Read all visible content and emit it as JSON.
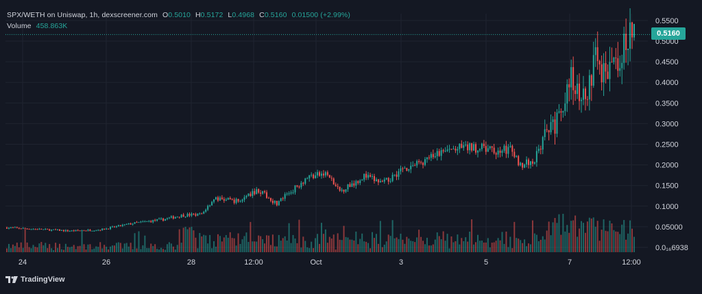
{
  "legend": {
    "title": "SPX/WETH on Uniswap, 1h, dexscreener.com",
    "open_key": "O",
    "open": "0.5010",
    "high_key": "H",
    "high": "0.5172",
    "low_key": "L",
    "low": "0.4968",
    "close_key": "C",
    "close": "0.5160",
    "change": "0.01500 (+2.99%)",
    "volume_label": "Volume",
    "volume": "458.863K"
  },
  "last_price_tag": "0.5160",
  "branding": "TradingView",
  "colors": {
    "background": "#141823",
    "up": "#26a69a",
    "down": "#ef5350",
    "grid": "#1f2430",
    "text": "#d1d4dc"
  },
  "chart_data": {
    "type": "candlestick",
    "pair": "SPX/WETH",
    "interval": "1h",
    "y_axis_ticks": [
      "0.5500",
      "0.5000",
      "0.4500",
      "0.4000",
      "0.3500",
      "0.3000",
      "0.2500",
      "0.2000",
      "0.1500",
      "0.1000",
      "0.05000",
      "0.0₁₆6938"
    ],
    "x_axis_ticks": [
      "24",
      "26",
      "28",
      "12:00",
      "Oct",
      "3",
      "5",
      "7",
      "12:00"
    ],
    "ylim": [
      0.0,
      0.55
    ],
    "close_anchors": [
      {
        "t": 0,
        "close": 0.048
      },
      {
        "t": 0.05,
        "close": 0.044
      },
      {
        "t": 0.1,
        "close": 0.04
      },
      {
        "t": 0.15,
        "close": 0.043
      },
      {
        "t": 0.2,
        "close": 0.058
      },
      {
        "t": 0.25,
        "close": 0.068
      },
      {
        "t": 0.28,
        "close": 0.078
      },
      {
        "t": 0.31,
        "close": 0.08
      },
      {
        "t": 0.33,
        "close": 0.118
      },
      {
        "t": 0.37,
        "close": 0.112
      },
      {
        "t": 0.4,
        "close": 0.14
      },
      {
        "t": 0.43,
        "close": 0.106
      },
      {
        "t": 0.46,
        "close": 0.145
      },
      {
        "t": 0.48,
        "close": 0.172
      },
      {
        "t": 0.51,
        "close": 0.178
      },
      {
        "t": 0.53,
        "close": 0.135
      },
      {
        "t": 0.57,
        "close": 0.173
      },
      {
        "t": 0.6,
        "close": 0.155
      },
      {
        "t": 0.63,
        "close": 0.19
      },
      {
        "t": 0.66,
        "close": 0.205
      },
      {
        "t": 0.69,
        "close": 0.228
      },
      {
        "t": 0.72,
        "close": 0.24
      },
      {
        "t": 0.75,
        "close": 0.242
      },
      {
        "t": 0.78,
        "close": 0.232
      },
      {
        "t": 0.8,
        "close": 0.24
      },
      {
        "t": 0.82,
        "close": 0.2
      },
      {
        "t": 0.84,
        "close": 0.21
      },
      {
        "t": 0.86,
        "close": 0.275
      },
      {
        "t": 0.88,
        "close": 0.31
      },
      {
        "t": 0.9,
        "close": 0.41
      },
      {
        "t": 0.92,
        "close": 0.36
      },
      {
        "t": 0.94,
        "close": 0.46
      },
      {
        "t": 0.96,
        "close": 0.41
      },
      {
        "t": 0.975,
        "close": 0.46
      },
      {
        "t": 0.99,
        "close": 0.5
      },
      {
        "t": 1.0,
        "close": 0.516
      }
    ]
  }
}
